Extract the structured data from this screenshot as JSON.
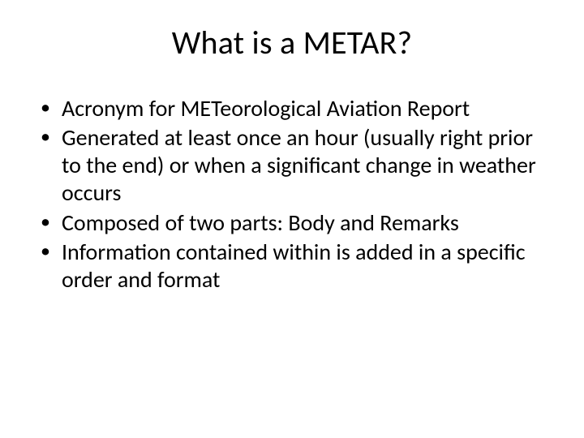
{
  "slide": {
    "title": "What is a METAR?",
    "title_fontsize": 40,
    "title_color": "#000000",
    "background_color": "#ffffff",
    "bullets": [
      "Acronym for METeorological Aviation Report",
      "Generated at least once an hour (usually right prior to the end) or when a significant change in weather occurs",
      "Composed of two parts:  Body and Remarks",
      "Information contained within is added in a specific order and format"
    ],
    "bullet_fontsize": 28,
    "bullet_color": "#000000",
    "bullet_marker": "•",
    "font_family": "Calibri"
  }
}
